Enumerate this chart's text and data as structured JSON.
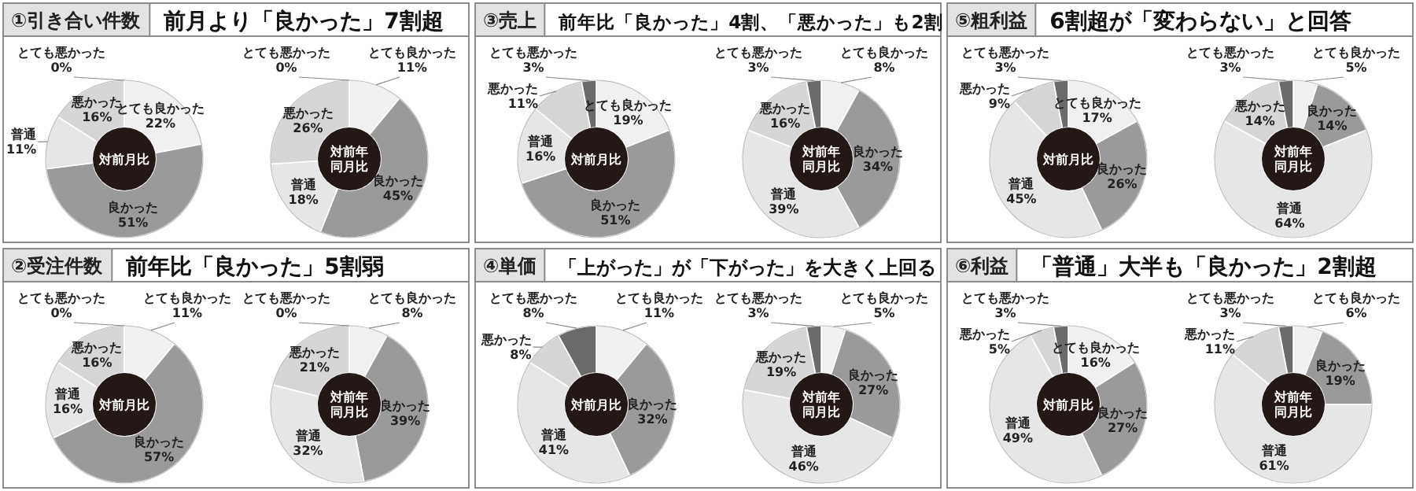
{
  "chart_data": [
    {
      "type": "donut",
      "title": "①引き合い件数",
      "subtitle": "前月より「良かった」7割超",
      "annotations": [
        "対前月比"
      ],
      "categories": [
        "とても良かった",
        "良かった",
        "普通",
        "悪かった",
        "とても悪かった"
      ],
      "values": [
        22,
        51,
        11,
        16,
        0
      ],
      "value_labels": [
        "22%",
        "51%",
        "11%",
        "16%",
        "0%"
      ],
      "colors": [
        "#f0f0f0",
        "#9a9a9a",
        "#e6e6e6",
        "#d6d6d6",
        "#6a6a6a"
      ]
    },
    {
      "type": "donut",
      "annotations": [
        "対前年同月比"
      ],
      "categories": [
        "とても良かった",
        "良かった",
        "普通",
        "悪かった",
        "とても悪かった"
      ],
      "values": [
        11,
        45,
        18,
        26,
        0
      ],
      "value_labels": [
        "11%",
        "45%",
        "18%",
        "26%",
        "0%"
      ],
      "colors": [
        "#f0f0f0",
        "#9a9a9a",
        "#e6e6e6",
        "#d6d6d6",
        "#6a6a6a"
      ]
    },
    {
      "type": "donut",
      "title": "③売上",
      "subtitle": "前年比「良かった」4割、「悪かった」も2割",
      "annotations": [
        "対前月比"
      ],
      "categories": [
        "とても良かった",
        "良かった",
        "普通",
        "悪かった",
        "とても悪かった"
      ],
      "values": [
        19,
        51,
        16,
        11,
        3
      ],
      "value_labels": [
        "19%",
        "51%",
        "16%",
        "11%",
        "3%"
      ],
      "colors": [
        "#f0f0f0",
        "#9a9a9a",
        "#e6e6e6",
        "#d6d6d6",
        "#6a6a6a"
      ]
    },
    {
      "type": "donut",
      "annotations": [
        "対前年同月比"
      ],
      "categories": [
        "とても良かった",
        "良かった",
        "普通",
        "悪かった",
        "とても悪かった"
      ],
      "values": [
        8,
        34,
        39,
        16,
        3
      ],
      "value_labels": [
        "8%",
        "34%",
        "39%",
        "16%",
        "3%"
      ],
      "colors": [
        "#f0f0f0",
        "#9a9a9a",
        "#e6e6e6",
        "#d6d6d6",
        "#6a6a6a"
      ]
    },
    {
      "type": "donut",
      "title": "⑤粗利益",
      "subtitle": "6割超が「変わらない」と回答",
      "annotations": [
        "対前月比"
      ],
      "categories": [
        "とても良かった",
        "良かった",
        "普通",
        "悪かった",
        "とても悪かった"
      ],
      "values": [
        17,
        26,
        45,
        9,
        3
      ],
      "value_labels": [
        "17%",
        "26%",
        "45%",
        "9%",
        "3%"
      ],
      "colors": [
        "#f0f0f0",
        "#9a9a9a",
        "#e6e6e6",
        "#d6d6d6",
        "#6a6a6a"
      ]
    },
    {
      "type": "donut",
      "annotations": [
        "対前年同月比"
      ],
      "categories": [
        "とても良かった",
        "良かった",
        "普通",
        "悪かった",
        "とても悪かった"
      ],
      "values": [
        5,
        14,
        64,
        14,
        3
      ],
      "value_labels": [
        "5%",
        "14%",
        "64%",
        "14%",
        "3%"
      ],
      "colors": [
        "#f0f0f0",
        "#9a9a9a",
        "#e6e6e6",
        "#d6d6d6",
        "#6a6a6a"
      ]
    },
    {
      "type": "donut",
      "title": "②受注件数",
      "subtitle": "前年比「良かった」5割弱",
      "annotations": [
        "対前月比"
      ],
      "categories": [
        "とても良かった",
        "良かった",
        "普通",
        "悪かった",
        "とても悪かった"
      ],
      "values": [
        11,
        57,
        16,
        16,
        0
      ],
      "value_labels": [
        "11%",
        "57%",
        "16%",
        "16%",
        "0%"
      ],
      "colors": [
        "#f0f0f0",
        "#9a9a9a",
        "#e6e6e6",
        "#d6d6d6",
        "#6a6a6a"
      ]
    },
    {
      "type": "donut",
      "annotations": [
        "対前年同月比"
      ],
      "categories": [
        "とても良かった",
        "良かった",
        "普通",
        "悪かった",
        "とても悪かった"
      ],
      "values": [
        8,
        39,
        32,
        21,
        0
      ],
      "value_labels": [
        "8%",
        "39%",
        "32%",
        "21%",
        "0%"
      ],
      "colors": [
        "#f0f0f0",
        "#9a9a9a",
        "#e6e6e6",
        "#d6d6d6",
        "#6a6a6a"
      ]
    },
    {
      "type": "donut",
      "title": "④単価",
      "subtitle": "「上がった」が「下がった」を大きく上回る",
      "annotations": [
        "対前月比"
      ],
      "categories": [
        "とても良かった",
        "良かった",
        "普通",
        "悪かった",
        "とても悪かった"
      ],
      "values": [
        11,
        32,
        41,
        8,
        8
      ],
      "value_labels": [
        "11%",
        "32%",
        "41%",
        "8%",
        "8%"
      ],
      "colors": [
        "#f0f0f0",
        "#9a9a9a",
        "#e6e6e6",
        "#d6d6d6",
        "#6a6a6a"
      ]
    },
    {
      "type": "donut",
      "annotations": [
        "対前年同月比"
      ],
      "categories": [
        "とても良かった",
        "良かった",
        "普通",
        "悪かった",
        "とても悪かった"
      ],
      "values": [
        5,
        27,
        46,
        19,
        3
      ],
      "value_labels": [
        "5%",
        "27%",
        "46%",
        "19%",
        "3%"
      ],
      "colors": [
        "#f0f0f0",
        "#9a9a9a",
        "#e6e6e6",
        "#d6d6d6",
        "#6a6a6a"
      ]
    },
    {
      "type": "donut",
      "title": "⑥利益",
      "subtitle": "「普通」大半も「良かった」2割超",
      "annotations": [
        "対前月比"
      ],
      "categories": [
        "とても良かった",
        "良かった",
        "普通",
        "悪かった",
        "とても悪かった"
      ],
      "values": [
        16,
        27,
        49,
        5,
        3
      ],
      "value_labels": [
        "16%",
        "27%",
        "49%",
        "5%",
        "3%"
      ],
      "colors": [
        "#f0f0f0",
        "#9a9a9a",
        "#e6e6e6",
        "#d6d6d6",
        "#6a6a6a"
      ]
    },
    {
      "type": "donut",
      "annotations": [
        "対前年同月比"
      ],
      "categories": [
        "とても良かった",
        "良かった",
        "普通",
        "悪かった",
        "とても悪かった"
      ],
      "values": [
        6,
        19,
        61,
        11,
        3
      ],
      "value_labels": [
        "6%",
        "19%",
        "61%",
        "11%",
        "3%"
      ],
      "colors": [
        "#f0f0f0",
        "#9a9a9a",
        "#e6e6e6",
        "#d6d6d6",
        "#6a6a6a"
      ]
    }
  ]
}
